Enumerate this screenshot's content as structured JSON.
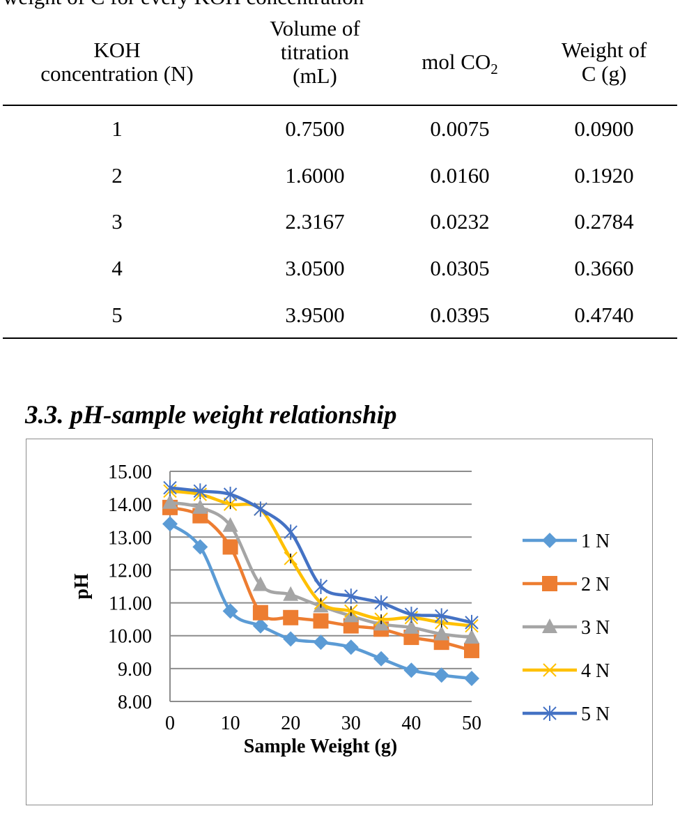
{
  "caption": "weight of C for every KOH concentration",
  "table": {
    "headers": [
      [
        "KOH",
        "concentration (N)"
      ],
      [
        "Volume of",
        "titration",
        "(mL)"
      ],
      [
        "mol CO",
        "2"
      ],
      [
        "Weight of",
        "C (g)"
      ]
    ],
    "rows": [
      [
        "1",
        "0.7500",
        "0.0075",
        "0.0900"
      ],
      [
        "2",
        "1.6000",
        "0.0160",
        "0.1920"
      ],
      [
        "3",
        "2.3167",
        "0.0232",
        "0.2784"
      ],
      [
        "4",
        "3.0500",
        "0.0305",
        "0.3660"
      ],
      [
        "5",
        "3.9500",
        "0.0395",
        "0.4740"
      ]
    ]
  },
  "section_heading": "3.3. pH-sample weight relationship",
  "chart_data": {
    "type": "line",
    "title": "",
    "xlabel": "Sample Weight (g)",
    "ylabel": "pH",
    "xlim": [
      0,
      50
    ],
    "ylim": [
      8,
      15
    ],
    "x_ticks": [
      "0",
      "10",
      "20",
      "30",
      "40",
      "50"
    ],
    "y_ticks": [
      "8.00",
      "9.00",
      "10.00",
      "11.00",
      "12.00",
      "13.00",
      "14.00",
      "15.00"
    ],
    "grid": true,
    "legend_position": "right",
    "x": [
      0,
      5,
      10,
      15,
      20,
      25,
      30,
      35,
      40,
      45,
      50
    ],
    "series": [
      {
        "name": "1 N",
        "color": "#5b9bd5",
        "marker": "diamond",
        "values": [
          13.4,
          12.7,
          10.75,
          10.3,
          9.9,
          9.8,
          9.65,
          9.3,
          8.95,
          8.8,
          8.7
        ]
      },
      {
        "name": "2 N",
        "color": "#ed7d31",
        "marker": "square",
        "values": [
          13.9,
          13.65,
          12.7,
          10.7,
          10.55,
          10.45,
          10.3,
          10.2,
          9.95,
          9.8,
          9.55
        ]
      },
      {
        "name": "3 N",
        "color": "#a5a5a5",
        "marker": "triangle",
        "values": [
          14.05,
          13.9,
          13.35,
          11.55,
          11.25,
          10.9,
          10.6,
          10.35,
          10.25,
          10.05,
          9.95
        ]
      },
      {
        "name": "4 N",
        "color": "#ffc000",
        "marker": "x",
        "values": [
          14.4,
          14.3,
          14.0,
          13.85,
          12.35,
          11.0,
          10.75,
          10.5,
          10.55,
          10.4,
          10.3
        ]
      },
      {
        "name": "5 N",
        "color": "#4472c4",
        "marker": "star",
        "values": [
          14.5,
          14.4,
          14.3,
          13.85,
          13.15,
          11.5,
          11.2,
          11.0,
          10.65,
          10.6,
          10.4
        ]
      }
    ]
  }
}
